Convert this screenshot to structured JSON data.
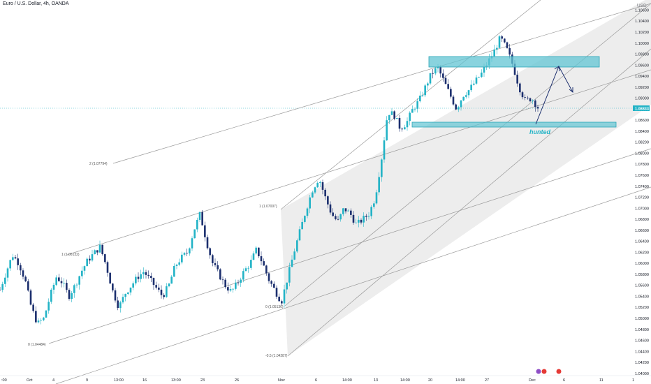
{
  "header": {
    "title": "Euro / U.S. Dollar, 4h, OANDA"
  },
  "price_axis": {
    "currency": "USD",
    "ticks": [
      "1.10600",
      "1.10400",
      "1.10200",
      "1.10000",
      "1.09800",
      "1.09600",
      "1.09400",
      "1.09200",
      "1.09000",
      "1.08600",
      "1.08400",
      "1.08200",
      "1.08000",
      "1.07800",
      "1.07600",
      "1.07400",
      "1.07200",
      "1.07000",
      "1.06800",
      "1.06600",
      "1.06400",
      "1.06200",
      "1.06000",
      "1.05800",
      "1.05600",
      "1.05400",
      "1.05200",
      "1.05000",
      "1.04800",
      "1.04600",
      "1.04400",
      "1.04200",
      "1.04000"
    ],
    "current_price": "1.08833"
  },
  "time_axis": {
    "ticks": [
      ":00",
      "Oct",
      "4",
      "9",
      "13:00",
      "16",
      "13:00",
      "23",
      "26",
      "Nov",
      "6",
      "14:00",
      "13",
      "14:00",
      "20",
      "14:00",
      "27",
      "Dec",
      "6",
      "11",
      "1"
    ]
  },
  "colors": {
    "bull": "#22b3c6",
    "bear": "#1c2f6e",
    "zone_fill": "#62c4d3",
    "zone_stroke": "#2aa6b7",
    "channel_line": "#9a9a9a",
    "channel_fill": "#d6d6d6",
    "current_price_bg": "#22b3c6",
    "arrow": "#1c2f6e"
  },
  "fib_labels": [
    "2 (1.07794)",
    "1 (1.07007)",
    "0 (1.05136)",
    "-0.5 (1.04287)",
    "1 (1.06132)",
    "0 (1.04484)"
  ],
  "annotation": {
    "text": "hunted"
  },
  "chart_data": {
    "type": "candlestick",
    "title": "Euro / U.S. Dollar, 4h, OANDA",
    "y_unit": "USD",
    "ylim": [
      1.0396,
      1.1072
    ],
    "x_ticks": [
      ":00",
      "Oct",
      "4",
      "9",
      "13:00",
      "16",
      "13:00",
      "23",
      "26",
      "Nov",
      "6",
      "14:00",
      "13",
      "14:00",
      "20",
      "14:00",
      "27",
      "Dec",
      "6",
      "11",
      "1"
    ],
    "current_price": 1.08833,
    "price_path_points": [
      [
        0,
        1.0552
      ],
      [
        2,
        1.0585
      ],
      [
        4,
        1.0615
      ],
      [
        6,
        1.06
      ],
      [
        8,
        1.057
      ],
      [
        10,
        1.052
      ],
      [
        12,
        1.049
      ],
      [
        14,
        1.05
      ],
      [
        16,
        1.054
      ],
      [
        18,
        1.0575
      ],
      [
        20,
        1.0565
      ],
      [
        22,
        1.054
      ],
      [
        24,
        1.056
      ],
      [
        26,
        1.0585
      ],
      [
        28,
        1.0605
      ],
      [
        30,
        1.0618
      ],
      [
        32,
        1.063
      ],
      [
        34,
        1.0595
      ],
      [
        36,
        1.055
      ],
      [
        38,
        1.052
      ],
      [
        40,
        1.0545
      ],
      [
        42,
        1.056
      ],
      [
        44,
        1.0575
      ],
      [
        46,
        1.0585
      ],
      [
        48,
        1.057
      ],
      [
        50,
        1.0555
      ],
      [
        52,
        1.054
      ],
      [
        54,
        1.056
      ],
      [
        56,
        1.0595
      ],
      [
        58,
        1.061
      ],
      [
        60,
        1.062
      ],
      [
        62,
        1.066
      ],
      [
        64,
        1.069
      ],
      [
        66,
        1.064
      ],
      [
        68,
        1.06
      ],
      [
        70,
        1.058
      ],
      [
        72,
        1.056
      ],
      [
        74,
        1.0548
      ],
      [
        76,
        1.0565
      ],
      [
        78,
        1.0585
      ],
      [
        80,
        1.06
      ],
      [
        82,
        1.0625
      ],
      [
        84,
        1.06
      ],
      [
        86,
        1.057
      ],
      [
        88,
        1.055
      ],
      [
        90,
        1.053
      ],
      [
        92,
        1.0575
      ],
      [
        94,
        1.062
      ],
      [
        96,
        1.066
      ],
      [
        98,
        1.07
      ],
      [
        100,
        1.0735
      ],
      [
        102,
        1.0755
      ],
      [
        104,
        1.072
      ],
      [
        106,
        1.069
      ],
      [
        108,
        1.0675
      ],
      [
        110,
        1.07
      ],
      [
        112,
        1.069
      ],
      [
        114,
        1.067
      ],
      [
        116,
        1.068
      ],
      [
        118,
        1.069
      ],
      [
        120,
        1.072
      ],
      [
        122,
        1.079
      ],
      [
        124,
        1.0875
      ],
      [
        126,
        1.087
      ],
      [
        128,
        1.0845
      ],
      [
        130,
        1.0855
      ],
      [
        132,
        1.088
      ],
      [
        134,
        1.0895
      ],
      [
        136,
        1.092
      ],
      [
        138,
        1.0945
      ],
      [
        140,
        1.0955
      ],
      [
        142,
        1.093
      ],
      [
        144,
        1.0905
      ],
      [
        146,
        1.088
      ],
      [
        148,
        1.0905
      ],
      [
        150,
        1.0915
      ],
      [
        152,
        1.093
      ],
      [
        154,
        1.0945
      ],
      [
        156,
        1.0965
      ],
      [
        158,
        1.0985
      ],
      [
        160,
        1.101
      ],
      [
        162,
        1.099
      ],
      [
        164,
        1.096
      ],
      [
        166,
        1.092
      ],
      [
        168,
        1.0895
      ],
      [
        170,
        1.09
      ],
      [
        172,
        1.0883
      ]
    ],
    "zones": [
      {
        "name": "supply",
        "y": [
          1.0958,
          1.0976
        ]
      },
      {
        "name": "support",
        "y": [
          1.0849,
          1.0856
        ]
      }
    ],
    "fib_levels": [
      {
        "label": "2 (1.07794)",
        "value": 1.07794
      },
      {
        "label": "1 (1.07007)",
        "value": 1.07007
      },
      {
        "label": "0 (1.05136)",
        "value": 1.05136
      },
      {
        "label": "-0.5 (1.04287)",
        "value": 1.04287
      },
      {
        "label": "1 (1.06132)",
        "value": 1.06132
      },
      {
        "label": "0 (1.04484)",
        "value": 1.04484
      }
    ],
    "projection_path": [
      1.0848,
      1.0962,
      1.0925
    ],
    "grid": false
  }
}
